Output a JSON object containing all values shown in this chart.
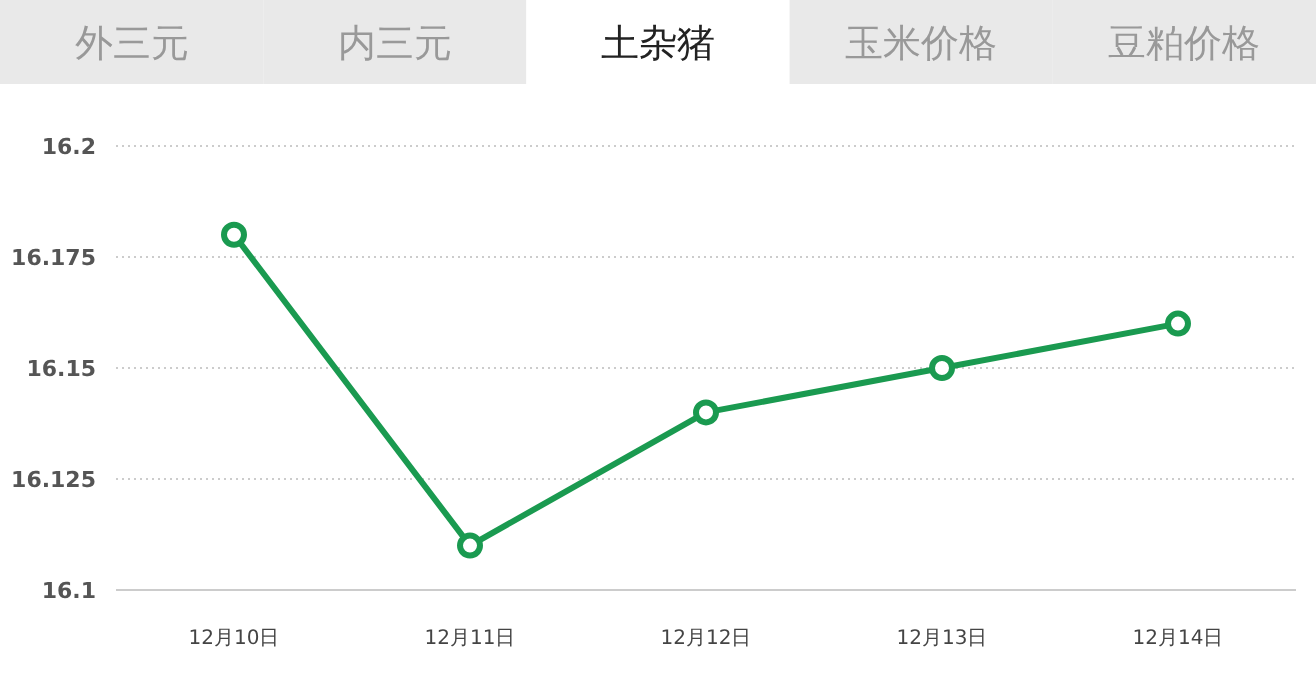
{
  "chart_data": {
    "type": "line",
    "title": "土杂猪",
    "annotations": [
      "外三元",
      "内三元",
      "玉米价格",
      "豆粕价格"
    ],
    "categories": [
      "12月10日",
      "12月11日",
      "12月12日",
      "12月13日",
      "12月14日"
    ],
    "series": [
      {
        "color": "#1a9a50",
        "values": [
          16.18,
          16.11,
          16.14,
          16.15,
          16.16
        ]
      }
    ],
    "ylim": [
      16.1,
      16.2
    ],
    "yticks": [
      16.1,
      16.125,
      16.15,
      16.175,
      16.2
    ],
    "grid": "y",
    "marker": "circle"
  }
}
